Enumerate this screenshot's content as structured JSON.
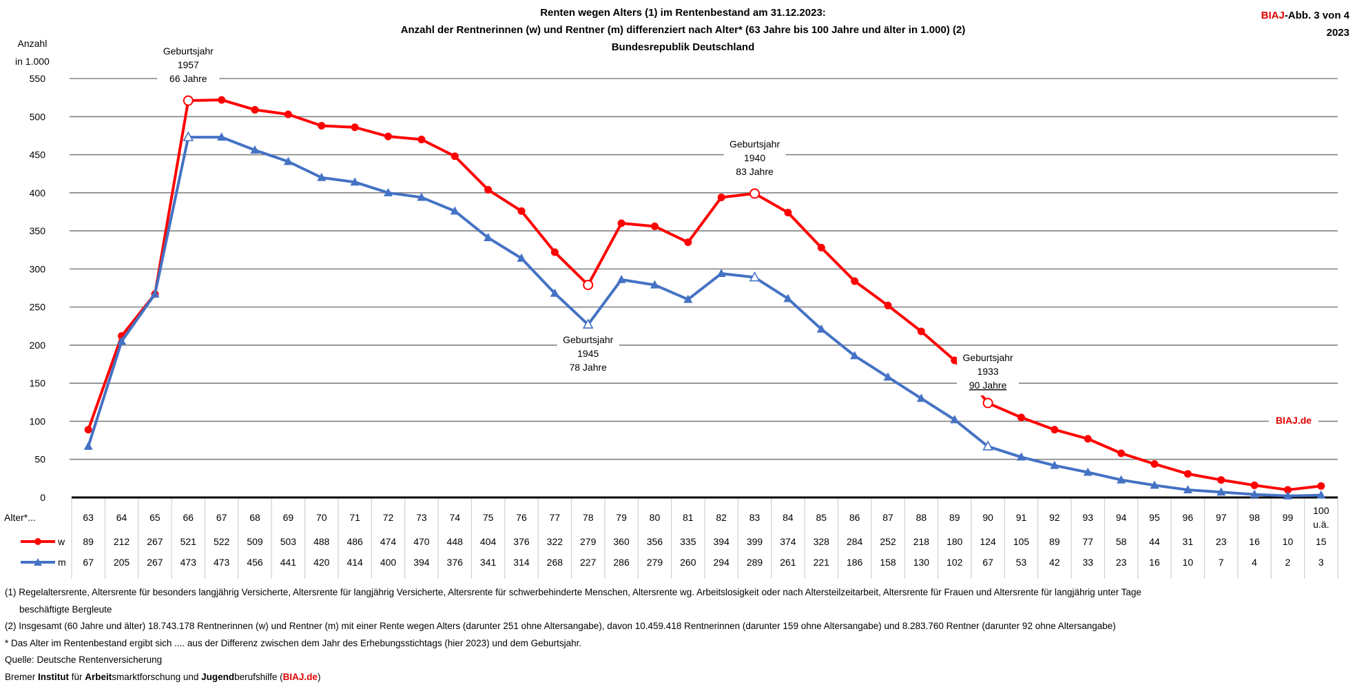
{
  "header": {
    "title_lines": [
      "Renten wegen Alters (1) im Rentenbestand am 31.12.2023:",
      "Anzahl der Rentnerinnen (w) und Rentner (m)  differenziert nach Alter* (63 Jahre bis 100 Jahre und älter in 1.000)  (2)",
      "Bundesrepublik Deutschland"
    ],
    "badge_brand": "BIAJ",
    "badge_rest": "-Abb. 3 von 4",
    "badge_year": "2023"
  },
  "colors": {
    "w": "#ff0000",
    "m": "#4472c4",
    "brand": "#e00000",
    "grid": "#808080"
  },
  "chart_data": {
    "type": "line",
    "ylabel_lines": [
      "Anzahl",
      "in 1.000"
    ],
    "ylim": [
      0,
      550
    ],
    "yticks": [
      0,
      50,
      100,
      150,
      200,
      250,
      300,
      350,
      400,
      450,
      500,
      550
    ],
    "grid": true,
    "xlabel": "Alter*...",
    "categories": [
      "63",
      "64",
      "65",
      "66",
      "67",
      "68",
      "69",
      "70",
      "71",
      "72",
      "73",
      "74",
      "75",
      "76",
      "77",
      "78",
      "79",
      "80",
      "81",
      "82",
      "83",
      "84",
      "85",
      "86",
      "87",
      "88",
      "89",
      "90",
      "91",
      "92",
      "93",
      "94",
      "95",
      "96",
      "97",
      "98",
      "99",
      "100 u.ä."
    ],
    "series": [
      {
        "name": "w",
        "marker": "circle",
        "values": [
          89,
          212,
          267,
          521,
          522,
          509,
          503,
          488,
          486,
          474,
          470,
          448,
          404,
          376,
          322,
          279,
          360,
          356,
          335,
          394,
          399,
          374,
          328,
          284,
          252,
          218,
          180,
          124,
          105,
          89,
          77,
          58,
          44,
          31,
          23,
          16,
          10,
          15
        ]
      },
      {
        "name": "m",
        "marker": "triangle",
        "values": [
          67,
          205,
          267,
          473,
          473,
          456,
          441,
          420,
          414,
          400,
          394,
          376,
          341,
          314,
          268,
          227,
          286,
          279,
          260,
          294,
          289,
          261,
          221,
          186,
          158,
          130,
          102,
          67,
          53,
          42,
          33,
          23,
          16,
          10,
          7,
          4,
          2,
          3
        ]
      }
    ],
    "highlighted_categories": [
      "66",
      "78",
      "83",
      "90"
    ],
    "annotations": [
      {
        "category": "66",
        "lines": [
          "Geburtsjahr",
          "1957",
          "66 Jahre"
        ],
        "position": "above"
      },
      {
        "category": "78",
        "lines": [
          "Geburtsjahr",
          "1945",
          "78 Jahre"
        ],
        "position": "below"
      },
      {
        "category": "83",
        "lines": [
          "Geburtsjahr",
          "1940",
          "83 Jahre"
        ],
        "position": "above"
      },
      {
        "category": "90",
        "lines": [
          "Geburtsjahr",
          "1933",
          "90 Jahre"
        ],
        "position": "above"
      }
    ],
    "watermark": "BIAJ.de"
  },
  "footnotes": {
    "n1a": "(1) Regelaltersrente, Altersrente für besonders langjährig Versicherte, Altersrente für langjährig Versicherte, Altersrente für schwerbehinderte Menschen, Altersrente wg. Arbeitslosigkeit oder nach Altersteilzeitarbeit, Altersrente für Frauen und  Altersrente für langjährig unter Tage",
    "n1b": "beschäftigte Bergleute",
    "n2": "(2)  Insgesamt (60 Jahre und älter) 18.743.178 Rentnerinnen (w) und Rentner (m)  mit einer Rente wegen Alters (darunter 251 ohne Altersangabe), davon 10.459.418 Rentnerinnen (darunter 159 ohne Altersangabe) und 8.283.760  Rentner (darunter 92 ohne Altersangabe)",
    "star": "* Das Alter im Rentenbestand ergibt sich .... aus der Differenz zwischen dem Jahr des Erhebungsstichtags (hier 2023) und dem Geburtsjahr.",
    "source": "Quelle: Deutsche Rentenversicherung",
    "credit": [
      "Bremer ",
      "Institut",
      " für ",
      "Arbeit",
      "smarktforschung und ",
      "Jugend",
      "berufshilfe (",
      "BIAJ.de",
      ")"
    ]
  }
}
